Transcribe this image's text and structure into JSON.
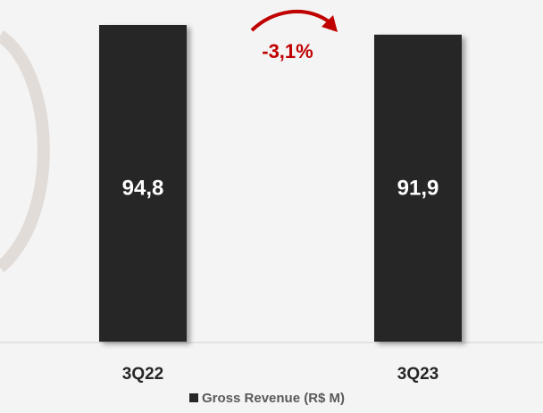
{
  "chart_data": {
    "type": "bar",
    "categories": [
      "3Q22",
      "3Q23"
    ],
    "series": [
      {
        "name": "Gross Revenue (R$ M)",
        "color": "#262626",
        "values": [
          94.8,
          91.9
        ],
        "value_labels": [
          "94,8",
          "91,9"
        ]
      }
    ],
    "annotation": "-3,1%",
    "annotation_color": "#c00000",
    "legend": "bottom"
  }
}
